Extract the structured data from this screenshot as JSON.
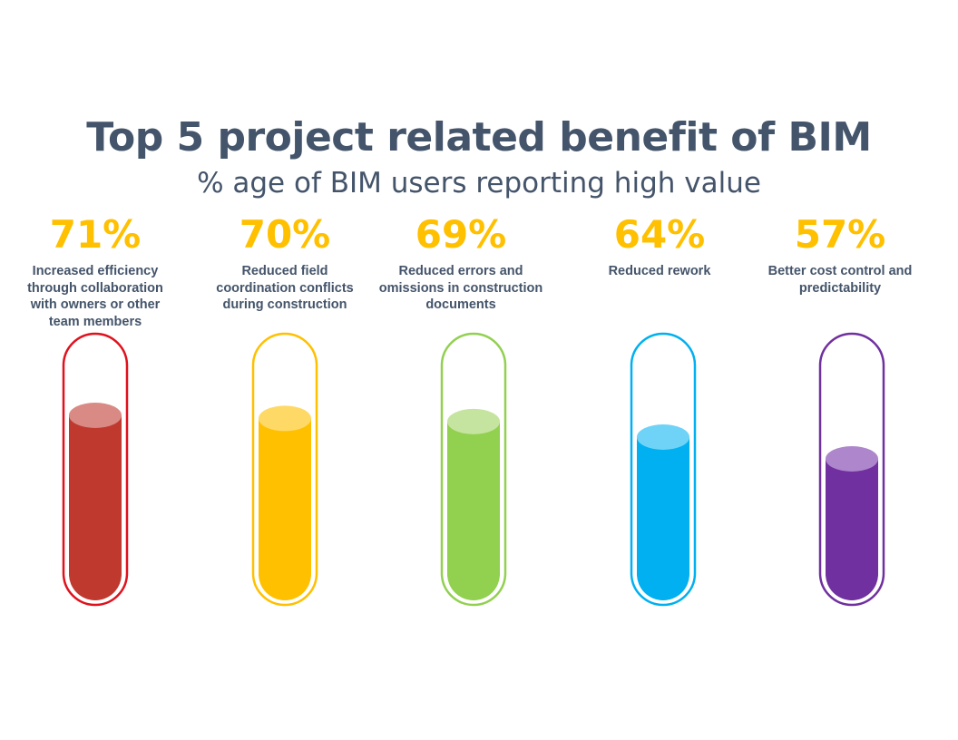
{
  "chart_data": {
    "type": "bar",
    "title": "Top 5 project related benefit of BIM",
    "subtitle": "% age of BIM users reporting high value",
    "xlabel": "",
    "ylabel": "",
    "ylim": [
      0,
      100
    ],
    "categories": [
      "Increased efficiency through collaboration with owners or other team members",
      "Reduced field coordination conflicts during construction",
      "Reduced errors and omissions in construction documents",
      "Reduced rework",
      "Better cost control and predictability"
    ],
    "values": [
      71,
      70,
      69,
      64,
      57
    ],
    "value_labels": [
      "71%",
      "70%",
      "69%",
      "64%",
      "57%"
    ],
    "colors": [
      {
        "outline": "#e0111d",
        "fill": "#c0392f",
        "top": "#d98a85"
      },
      {
        "outline": "#ffc000",
        "fill": "#ffc000",
        "top": "#ffd966"
      },
      {
        "outline": "#92d050",
        "fill": "#92d050",
        "top": "#c5e4a0"
      },
      {
        "outline": "#00b0f0",
        "fill": "#00b0f0",
        "top": "#6fd3f7"
      },
      {
        "outline": "#7030a0",
        "fill": "#7030a0",
        "top": "#ae86cc"
      }
    ],
    "value_color": "#ffc000",
    "text_color": "#44546a",
    "style": "test-tube fill gauge"
  }
}
